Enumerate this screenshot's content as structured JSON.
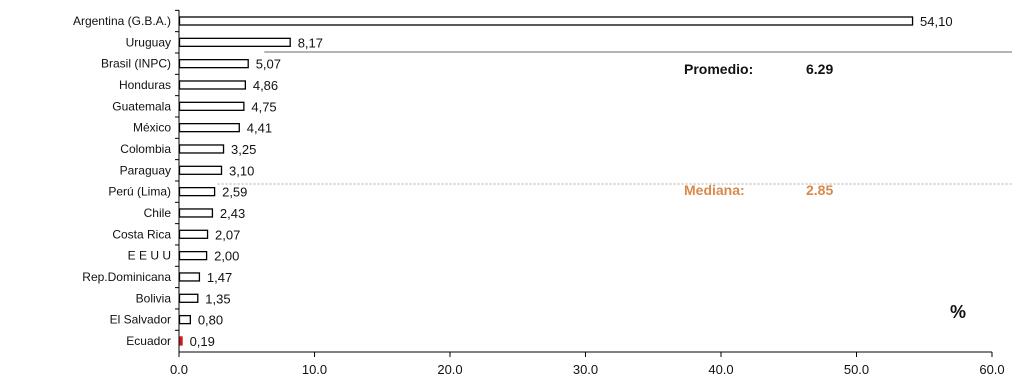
{
  "chart_data": {
    "type": "bar",
    "orientation": "horizontal",
    "categories": [
      "Argentina (G.B.A.)",
      "Uruguay",
      "Brasil (INPC)",
      "Honduras",
      "Guatemala",
      "México",
      "Colombia",
      "Paraguay",
      "Perú (Lima)",
      "Chile",
      "Costa Rica",
      "E E U U",
      "Rep.Dominicana",
      "Bolivia",
      "El Salvador",
      "Ecuador"
    ],
    "values": [
      54.1,
      8.17,
      5.07,
      4.86,
      4.75,
      4.41,
      3.25,
      3.1,
      2.59,
      2.43,
      2.07,
      2.0,
      1.47,
      1.35,
      0.8,
      0.19
    ],
    "value_labels": [
      "54,10",
      "8,17",
      "5,07",
      "4,86",
      "4,75",
      "4,41",
      "3,25",
      "3,10",
      "2,59",
      "2,43",
      "2,07",
      "2,00",
      "1,47",
      "1,35",
      "0,80",
      "0,19"
    ],
    "highlight_category": "Ecuador",
    "highlight_color": "#cc1f1f",
    "bar_fill": "#ffffff",
    "bar_stroke": "#000000",
    "xlim": [
      0,
      60
    ],
    "xticks": [
      "0.0",
      "10.0",
      "20.0",
      "30.0",
      "40.0",
      "50.0",
      "60.0"
    ],
    "unit_label": "%",
    "grid": false,
    "reference_lines": [
      {
        "label": "Promedio:",
        "value": 6.29,
        "value_label": "6.29",
        "color": "#111111",
        "line_color": "#888888",
        "style": "solid"
      },
      {
        "label": "Mediana:",
        "value": 2.85,
        "value_label": "2.85",
        "color": "#d9894a",
        "line_color": "#aaaaaa",
        "style": "dotted"
      }
    ]
  }
}
